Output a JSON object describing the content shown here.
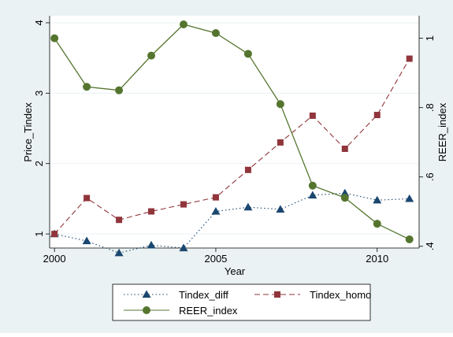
{
  "chart_data": {
    "type": "line",
    "title": "",
    "xlabel": "Year",
    "ylabel": "Price_Tindex",
    "y2label": "REER_index",
    "x": [
      2000,
      2001,
      2002,
      2003,
      2004,
      2005,
      2006,
      2007,
      2008,
      2009,
      2010,
      2011
    ],
    "xlim": [
      1999.85,
      2011.3
    ],
    "xticks": [
      "2000",
      "2005",
      "2010"
    ],
    "ylim": [
      0.8,
      4.1
    ],
    "yticks": [
      "1",
      "2",
      "3",
      "4"
    ],
    "y2lim": [
      0.395,
      1.065
    ],
    "y2ticks": [
      ".4",
      ".6",
      ".8",
      "1"
    ],
    "grid": true,
    "legend_position": "bottom",
    "series": [
      {
        "name": "Tindex_diff",
        "axis": "left",
        "color": "#1a476f",
        "line_style": "dotted",
        "marker": "triangle",
        "values": [
          1.0,
          0.9,
          0.73,
          0.84,
          0.8,
          1.32,
          1.38,
          1.35,
          1.55,
          1.58,
          1.48,
          1.5
        ]
      },
      {
        "name": "Tindex_homo",
        "axis": "left",
        "color": "#90353b",
        "line_style": "dashed",
        "marker": "square",
        "values": [
          1.0,
          1.51,
          1.2,
          1.32,
          1.42,
          1.52,
          1.91,
          2.3,
          2.68,
          2.21,
          2.69,
          3.49
        ]
      },
      {
        "name": "REER_index",
        "axis": "right",
        "color": "#55752f",
        "line_style": "solid",
        "marker": "circle",
        "values": [
          1.0,
          0.86,
          0.85,
          0.95,
          1.04,
          1.015,
          0.955,
          0.81,
          0.575,
          0.54,
          0.465,
          0.42
        ]
      }
    ]
  }
}
